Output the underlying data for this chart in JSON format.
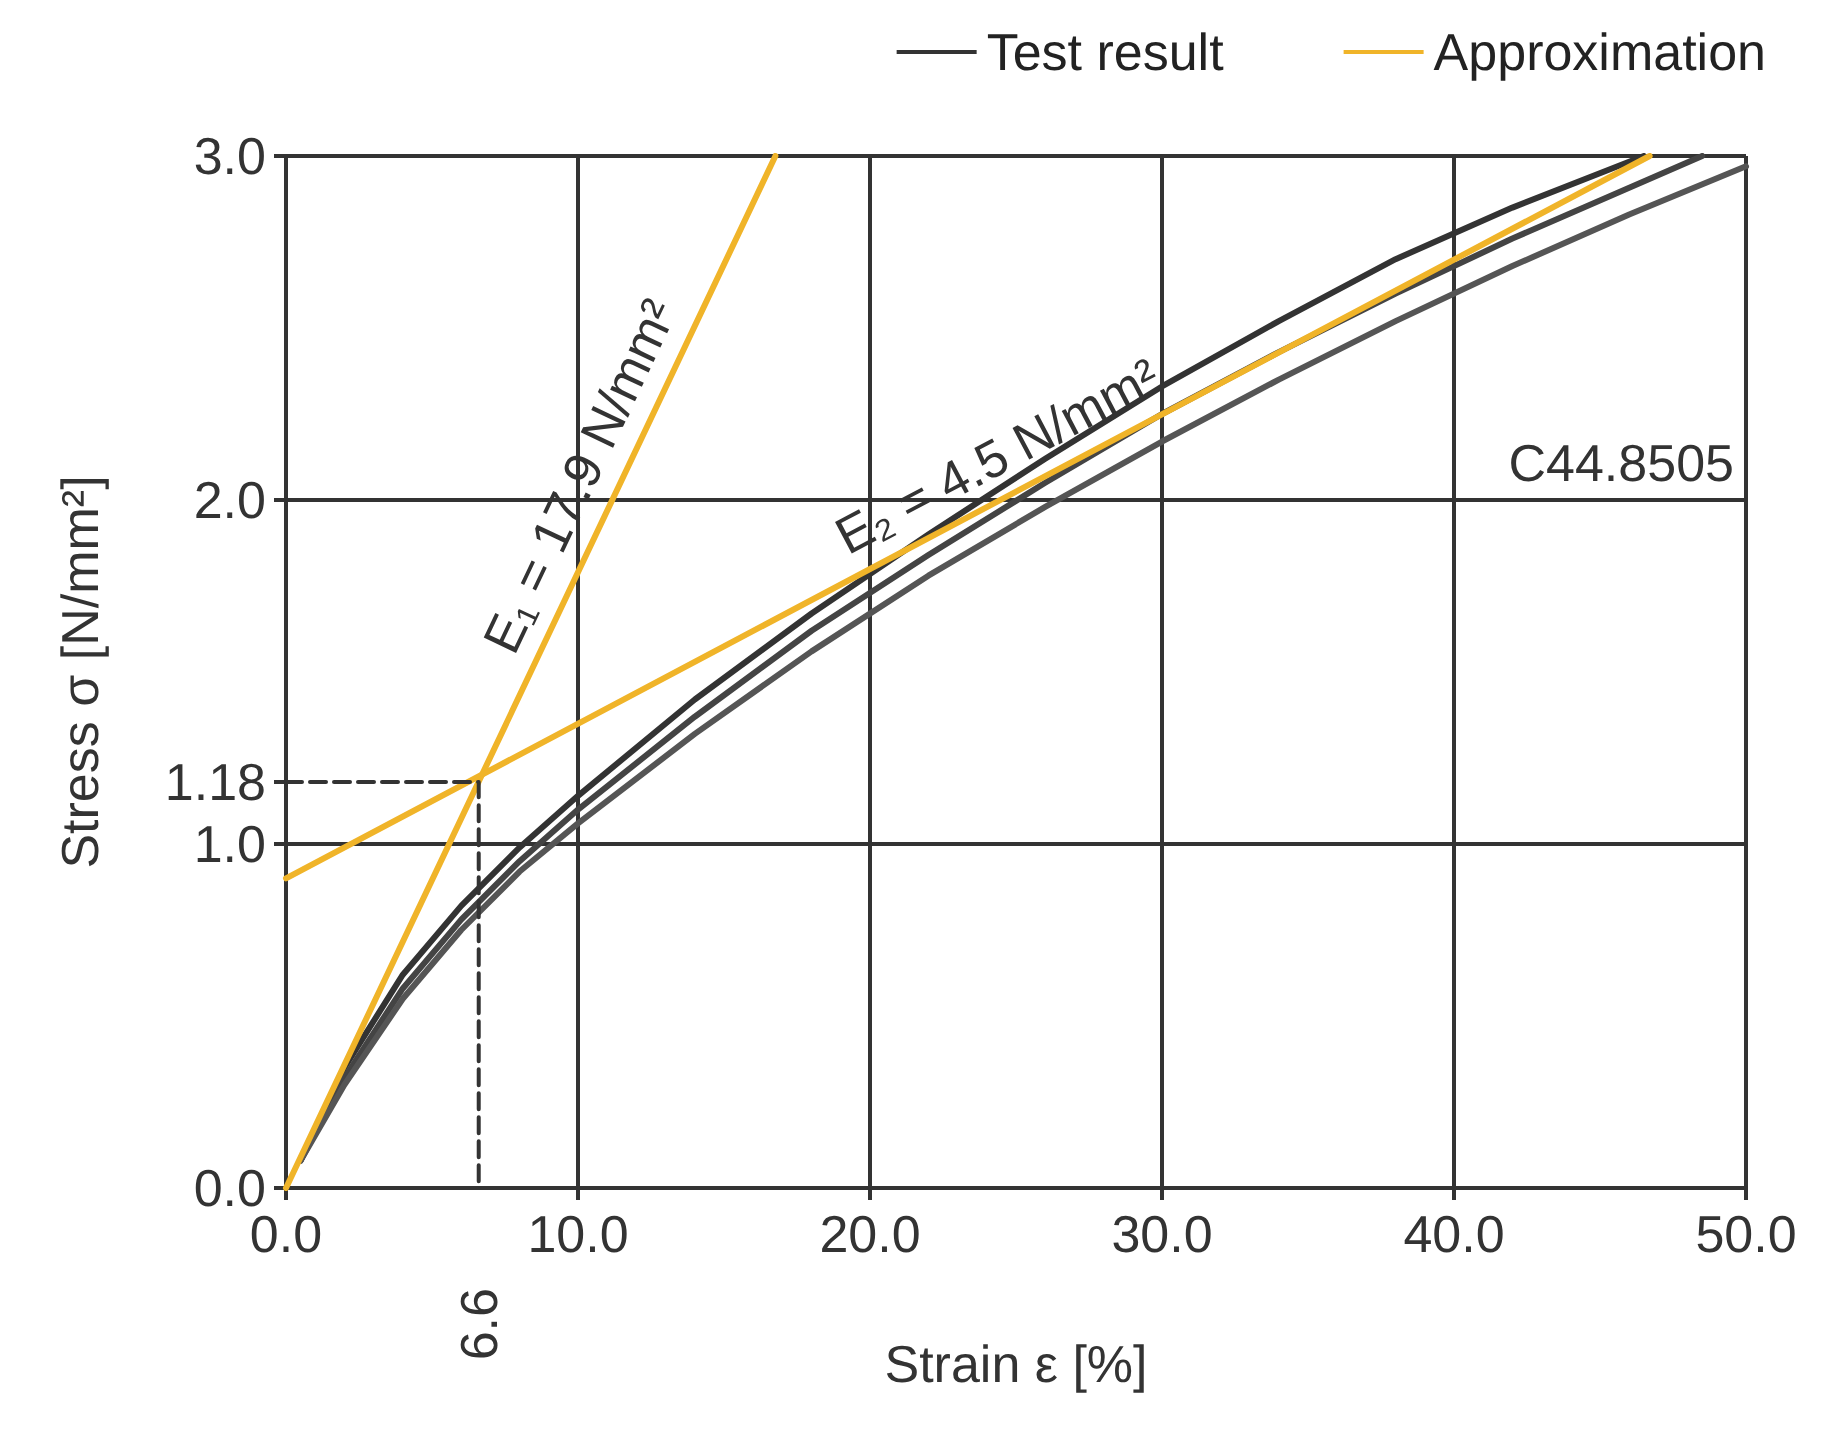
{
  "chart_data": {
    "type": "line",
    "xlabel": "Strain ε [%]",
    "ylabel": "Stress σ [N/mm²]",
    "xlim": [
      0,
      50
    ],
    "ylim": [
      0,
      3
    ],
    "xticks": [
      {
        "value": 0,
        "label": "0.0"
      },
      {
        "value": 10,
        "label": "10.0"
      },
      {
        "value": 20,
        "label": "20.0"
      },
      {
        "value": 30,
        "label": "30.0"
      },
      {
        "value": 40,
        "label": "40.0"
      },
      {
        "value": 50,
        "label": "50.0"
      }
    ],
    "yticks": [
      {
        "value": 0,
        "label": "0.0"
      },
      {
        "value": 1,
        "label": "1.0"
      },
      {
        "value": 2,
        "label": "2.0"
      },
      {
        "value": 3,
        "label": "3.0"
      },
      {
        "value": 1.18,
        "label": "1.18"
      }
    ],
    "grid": true,
    "legend": "top right",
    "marker": "none",
    "line_style": "solid",
    "series": [
      {
        "name": "Test result",
        "color": "#333333",
        "x": [
          0.5,
          2,
          4,
          6,
          8,
          10,
          14,
          18,
          22,
          26,
          30,
          34,
          38,
          42,
          46.5
        ],
        "values": [
          0.08,
          0.35,
          0.62,
          0.82,
          0.99,
          1.14,
          1.42,
          1.67,
          1.9,
          2.12,
          2.33,
          2.52,
          2.7,
          2.85,
          3.0
        ]
      },
      {
        "color": "#444444",
        "x": [
          0.5,
          2,
          4,
          6,
          8,
          10,
          14,
          18,
          22,
          26,
          30,
          34,
          38,
          42,
          48.5
        ],
        "values": [
          0.08,
          0.32,
          0.58,
          0.78,
          0.95,
          1.1,
          1.37,
          1.62,
          1.84,
          2.05,
          2.25,
          2.43,
          2.6,
          2.76,
          3.0
        ]
      },
      {
        "color": "#555555",
        "x": [
          0.5,
          2,
          4,
          6,
          8,
          10,
          14,
          18,
          22,
          26,
          30,
          34,
          38,
          42,
          46,
          50
        ],
        "values": [
          0.08,
          0.3,
          0.55,
          0.75,
          0.92,
          1.06,
          1.32,
          1.56,
          1.78,
          1.98,
          2.17,
          2.35,
          2.52,
          2.68,
          2.83,
          2.97
        ]
      },
      {
        "name": "Approximation",
        "color": "#f0b429",
        "x": [
          0,
          16.76
        ],
        "values": [
          0,
          3.0
        ]
      },
      {
        "color": "#f0b429",
        "x": [
          0,
          46.7
        ],
        "values": [
          0.9,
          3.0
        ]
      },
      {
        "color": "#333333",
        "line_style": "dashed",
        "x": [
          0,
          6.6,
          6.6
        ],
        "values": [
          1.18,
          1.18,
          0
        ]
      }
    ],
    "annotations": [
      {
        "text": "E₁ = 17.9 N/mm²",
        "x": 11.3,
        "y": 2.02
      },
      {
        "text": "E₂ = 4.5 N/mm²",
        "x": 25,
        "y": 2.025
      },
      "C44.8505",
      {
        "text": "6.6",
        "x": 6.6,
        "y": 0
      }
    ]
  }
}
